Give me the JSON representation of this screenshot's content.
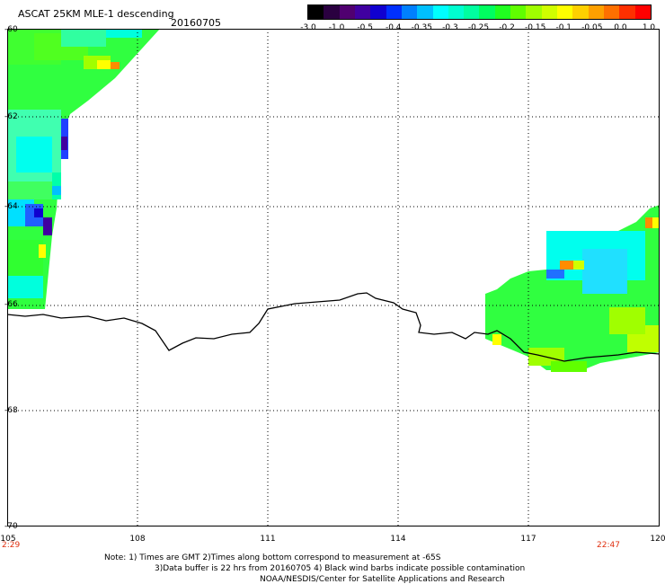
{
  "header": {
    "title": "ASCAT 25KM MLE-1 descending",
    "date": "20160705"
  },
  "colorbar": {
    "labels": [
      "-3.0",
      "-1.0",
      "-0.5",
      "-0.4",
      "-0.35",
      "-0.3",
      "-0.25",
      "-0.2",
      "-0.15",
      "-0.1",
      "-0.05",
      "0.0",
      "1.0"
    ],
    "colors": [
      "#000000",
      "#2a0040",
      "#500070",
      "#4000a0",
      "#1000d0",
      "#0030ff",
      "#0080ff",
      "#00c0ff",
      "#00ffff",
      "#00ffd0",
      "#00ffa0",
      "#00ff60",
      "#20ff20",
      "#60ff00",
      "#a0ff00",
      "#d0ff00",
      "#ffff00",
      "#ffd000",
      "#ffa000",
      "#ff7000",
      "#ff3000",
      "#ff0000"
    ]
  },
  "map": {
    "lat_labels": [
      "-60",
      "-62",
      "-64",
      "-66",
      "-68",
      "-70"
    ],
    "lon_labels": [
      "105",
      "108",
      "111",
      "114",
      "117",
      "120"
    ],
    "time_start": "2:29",
    "time_end": "22:47"
  },
  "notes": {
    "line1": "Note: 1) Times are GMT 2)Times along bottom correspond to measurement at -65S",
    "line2": "3)Data buffer is 22 hrs from 20160705 4) Black wind barbs indicate possible contamination",
    "line3": "NOAA/NESDIS/Center for Satellite Applications and Research"
  }
}
